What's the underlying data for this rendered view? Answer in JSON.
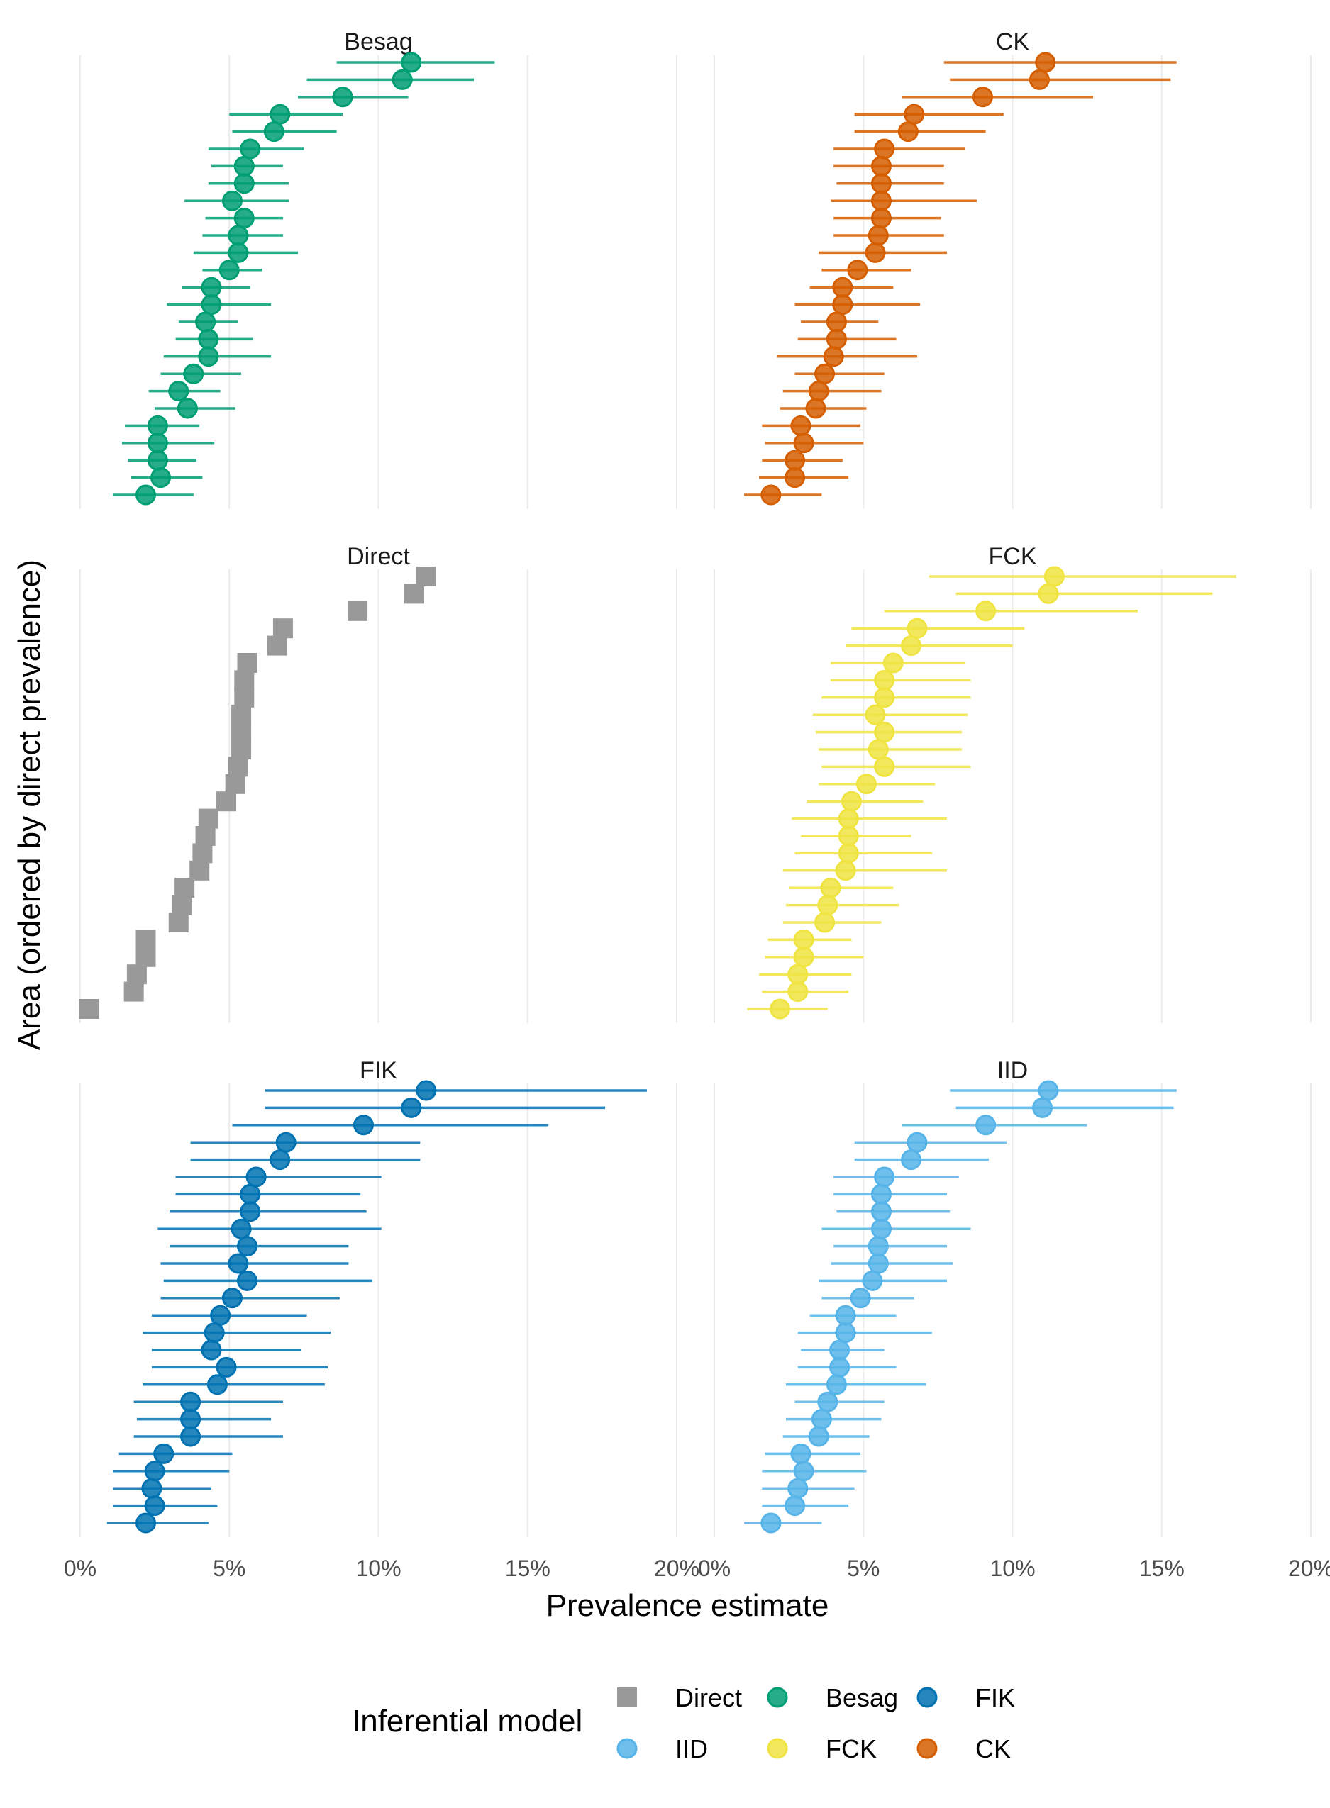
{
  "chart_data": {
    "type": "scatter",
    "x_label": "Prevalence estimate",
    "y_label": "Area (ordered by direct prevalence)",
    "x_range": [
      0,
      0.2
    ],
    "x_ticks": [
      0,
      0.05,
      0.1,
      0.15,
      0.2
    ],
    "x_tick_labels": [
      "0%",
      "5%",
      "10%",
      "15%",
      "20%"
    ],
    "grid": "vertical major lines only",
    "layout": "facets 2 columns x 3 rows",
    "legend_title": "Inferential model",
    "legend_position": "bottom",
    "legend": [
      {
        "label": "Direct",
        "color": "#999999",
        "shape": "square"
      },
      {
        "label": "Besag",
        "color": "#009E73",
        "shape": "circle"
      },
      {
        "label": "FIK",
        "color": "#0072B2",
        "shape": "circle"
      },
      {
        "label": "IID",
        "color": "#56B4E9",
        "shape": "circle"
      },
      {
        "label": "FCK",
        "color": "#F0E442",
        "shape": "circle"
      },
      {
        "label": "CK",
        "color": "#D55E00",
        "shape": "circle"
      }
    ],
    "panels": [
      {
        "name": "Besag",
        "color": "#009E73",
        "shape": "circle",
        "intervals": true,
        "points": [
          [
            0.111,
            0.086,
            0.139
          ],
          [
            0.108,
            0.076,
            0.132
          ],
          [
            0.088,
            0.073,
            0.11
          ],
          [
            0.067,
            0.05,
            0.088
          ],
          [
            0.065,
            0.051,
            0.086
          ],
          [
            0.057,
            0.043,
            0.075
          ],
          [
            0.055,
            0.044,
            0.068
          ],
          [
            0.055,
            0.043,
            0.07
          ],
          [
            0.051,
            0.035,
            0.07
          ],
          [
            0.055,
            0.042,
            0.068
          ],
          [
            0.053,
            0.041,
            0.068
          ],
          [
            0.053,
            0.038,
            0.073
          ],
          [
            0.05,
            0.041,
            0.061
          ],
          [
            0.044,
            0.034,
            0.057
          ],
          [
            0.044,
            0.029,
            0.064
          ],
          [
            0.042,
            0.033,
            0.053
          ],
          [
            0.043,
            0.032,
            0.058
          ],
          [
            0.043,
            0.028,
            0.064
          ],
          [
            0.038,
            0.027,
            0.054
          ],
          [
            0.033,
            0.023,
            0.047
          ],
          [
            0.036,
            0.025,
            0.052
          ],
          [
            0.026,
            0.015,
            0.04
          ],
          [
            0.026,
            0.014,
            0.045
          ],
          [
            0.026,
            0.016,
            0.039
          ],
          [
            0.027,
            0.017,
            0.041
          ],
          [
            0.022,
            0.011,
            0.038
          ]
        ]
      },
      {
        "name": "CK",
        "color": "#D55E00",
        "shape": "circle",
        "intervals": true,
        "points": [
          [
            0.111,
            0.077,
            0.155
          ],
          [
            0.109,
            0.079,
            0.153
          ],
          [
            0.09,
            0.063,
            0.127
          ],
          [
            0.067,
            0.047,
            0.097
          ],
          [
            0.065,
            0.047,
            0.091
          ],
          [
            0.057,
            0.04,
            0.084
          ],
          [
            0.056,
            0.04,
            0.077
          ],
          [
            0.056,
            0.041,
            0.077
          ],
          [
            0.056,
            0.039,
            0.088
          ],
          [
            0.056,
            0.04,
            0.076
          ],
          [
            0.055,
            0.04,
            0.077
          ],
          [
            0.054,
            0.035,
            0.078
          ],
          [
            0.048,
            0.036,
            0.066
          ],
          [
            0.043,
            0.032,
            0.06
          ],
          [
            0.043,
            0.027,
            0.069
          ],
          [
            0.041,
            0.029,
            0.055
          ],
          [
            0.041,
            0.028,
            0.061
          ],
          [
            0.04,
            0.021,
            0.068
          ],
          [
            0.037,
            0.027,
            0.057
          ],
          [
            0.035,
            0.023,
            0.056
          ],
          [
            0.034,
            0.022,
            0.051
          ],
          [
            0.029,
            0.016,
            0.049
          ],
          [
            0.03,
            0.017,
            0.05
          ],
          [
            0.027,
            0.016,
            0.043
          ],
          [
            0.027,
            0.015,
            0.045
          ],
          [
            0.019,
            0.01,
            0.036
          ]
        ]
      },
      {
        "name": "Direct",
        "color": "#999999",
        "shape": "square",
        "intervals": false,
        "points": [
          [
            0.116
          ],
          [
            0.112
          ],
          [
            0.093
          ],
          [
            0.068
          ],
          [
            0.066
          ],
          [
            0.056
          ],
          [
            0.055
          ],
          [
            0.055
          ],
          [
            0.054
          ],
          [
            0.054
          ],
          [
            0.054
          ],
          [
            0.053
          ],
          [
            0.052
          ],
          [
            0.049
          ],
          [
            0.043
          ],
          [
            0.042
          ],
          [
            0.041
          ],
          [
            0.04
          ],
          [
            0.035
          ],
          [
            0.034
          ],
          [
            0.033
          ],
          [
            0.022
          ],
          [
            0.022
          ],
          [
            0.019
          ],
          [
            0.018
          ],
          [
            0.003
          ]
        ]
      },
      {
        "name": "FCK",
        "color": "#F0E442",
        "shape": "circle",
        "intervals": true,
        "points": [
          [
            0.114,
            0.072,
            0.175
          ],
          [
            0.112,
            0.081,
            0.167
          ],
          [
            0.091,
            0.057,
            0.142
          ],
          [
            0.068,
            0.046,
            0.104
          ],
          [
            0.066,
            0.044,
            0.1
          ],
          [
            0.06,
            0.039,
            0.084
          ],
          [
            0.057,
            0.039,
            0.086
          ],
          [
            0.057,
            0.036,
            0.086
          ],
          [
            0.054,
            0.033,
            0.085
          ],
          [
            0.057,
            0.034,
            0.083
          ],
          [
            0.055,
            0.035,
            0.083
          ],
          [
            0.057,
            0.036,
            0.086
          ],
          [
            0.051,
            0.035,
            0.074
          ],
          [
            0.046,
            0.031,
            0.07
          ],
          [
            0.045,
            0.026,
            0.078
          ],
          [
            0.045,
            0.029,
            0.066
          ],
          [
            0.045,
            0.027,
            0.073
          ],
          [
            0.044,
            0.023,
            0.078
          ],
          [
            0.039,
            0.025,
            0.06
          ],
          [
            0.038,
            0.024,
            0.062
          ],
          [
            0.037,
            0.023,
            0.056
          ],
          [
            0.03,
            0.018,
            0.046
          ],
          [
            0.03,
            0.017,
            0.05
          ],
          [
            0.028,
            0.015,
            0.046
          ],
          [
            0.028,
            0.016,
            0.045
          ],
          [
            0.022,
            0.011,
            0.038
          ]
        ]
      },
      {
        "name": "FIK",
        "color": "#0072B2",
        "shape": "circle",
        "intervals": true,
        "points": [
          [
            0.116,
            0.062,
            0.19
          ],
          [
            0.111,
            0.062,
            0.176
          ],
          [
            0.095,
            0.051,
            0.157
          ],
          [
            0.069,
            0.037,
            0.114
          ],
          [
            0.067,
            0.037,
            0.114
          ],
          [
            0.059,
            0.032,
            0.101
          ],
          [
            0.057,
            0.032,
            0.094
          ],
          [
            0.057,
            0.03,
            0.096
          ],
          [
            0.054,
            0.026,
            0.101
          ],
          [
            0.056,
            0.03,
            0.09
          ],
          [
            0.053,
            0.027,
            0.09
          ],
          [
            0.056,
            0.028,
            0.098
          ],
          [
            0.051,
            0.027,
            0.087
          ],
          [
            0.047,
            0.024,
            0.076
          ],
          [
            0.045,
            0.021,
            0.084
          ],
          [
            0.044,
            0.024,
            0.074
          ],
          [
            0.049,
            0.024,
            0.083
          ],
          [
            0.046,
            0.021,
            0.082
          ],
          [
            0.037,
            0.018,
            0.068
          ],
          [
            0.037,
            0.019,
            0.064
          ],
          [
            0.037,
            0.018,
            0.068
          ],
          [
            0.028,
            0.013,
            0.051
          ],
          [
            0.025,
            0.011,
            0.05
          ],
          [
            0.024,
            0.011,
            0.044
          ],
          [
            0.025,
            0.011,
            0.046
          ],
          [
            0.022,
            0.009,
            0.043
          ]
        ]
      },
      {
        "name": "IID",
        "color": "#56B4E9",
        "shape": "circle",
        "intervals": true,
        "points": [
          [
            0.112,
            0.079,
            0.155
          ],
          [
            0.11,
            0.081,
            0.154
          ],
          [
            0.091,
            0.063,
            0.125
          ],
          [
            0.068,
            0.047,
            0.098
          ],
          [
            0.066,
            0.047,
            0.092
          ],
          [
            0.057,
            0.04,
            0.082
          ],
          [
            0.056,
            0.04,
            0.078
          ],
          [
            0.056,
            0.041,
            0.079
          ],
          [
            0.056,
            0.036,
            0.086
          ],
          [
            0.055,
            0.04,
            0.078
          ],
          [
            0.055,
            0.039,
            0.08
          ],
          [
            0.053,
            0.035,
            0.078
          ],
          [
            0.049,
            0.036,
            0.067
          ],
          [
            0.044,
            0.032,
            0.061
          ],
          [
            0.044,
            0.028,
            0.073
          ],
          [
            0.042,
            0.029,
            0.057
          ],
          [
            0.042,
            0.028,
            0.061
          ],
          [
            0.041,
            0.024,
            0.071
          ],
          [
            0.038,
            0.027,
            0.057
          ],
          [
            0.036,
            0.024,
            0.056
          ],
          [
            0.035,
            0.023,
            0.052
          ],
          [
            0.029,
            0.017,
            0.049
          ],
          [
            0.03,
            0.016,
            0.051
          ],
          [
            0.028,
            0.016,
            0.047
          ],
          [
            0.027,
            0.016,
            0.045
          ],
          [
            0.019,
            0.01,
            0.036
          ]
        ]
      }
    ]
  }
}
